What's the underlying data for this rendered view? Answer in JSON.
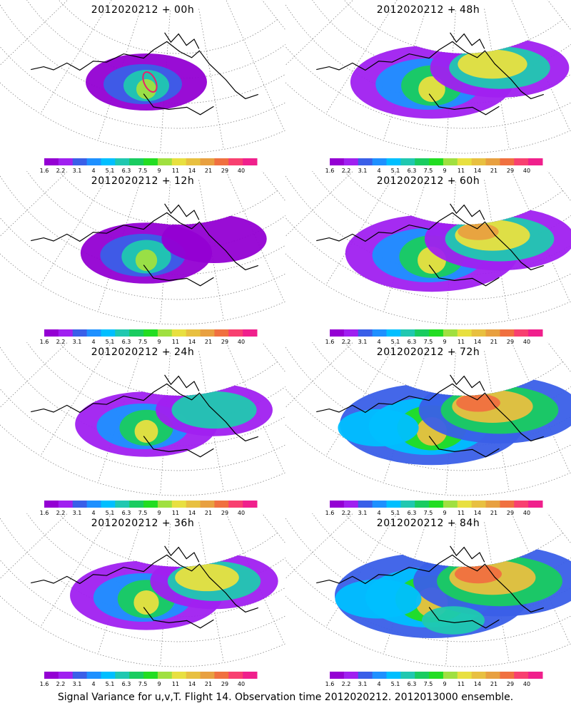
{
  "panels": [
    {
      "title": "2012020212 + 00h",
      "spread": 0.0,
      "marker": true
    },
    {
      "title": "2012020212 + 48h",
      "spread": 0.57,
      "marker": false
    },
    {
      "title": "2012020212 + 12h",
      "spread": 0.14,
      "marker": false
    },
    {
      "title": "2012020212 + 60h",
      "spread": 0.71,
      "marker": false
    },
    {
      "title": "2012020212 + 24h",
      "spread": 0.29,
      "marker": false
    },
    {
      "title": "2012020212 + 72h",
      "spread": 0.86,
      "marker": false
    },
    {
      "title": "2012020212 + 36h",
      "spread": 0.43,
      "marker": false
    },
    {
      "title": "2012020212 + 84h",
      "spread": 1.0,
      "marker": false
    }
  ],
  "colorbar": {
    "colors": [
      "#9400d3",
      "#a020f0",
      "#3a5fe8",
      "#1e90ff",
      "#00bfff",
      "#20c8b0",
      "#19cc60",
      "#22dd22",
      "#a0e040",
      "#e8e040",
      "#e8c040",
      "#e8a040",
      "#f07040",
      "#f84070",
      "#f0208c"
    ],
    "labels": [
      "1.6",
      "2.2",
      "3.1",
      "4",
      "5.1",
      "6.3",
      "7.5",
      "9",
      "11",
      "14",
      "21",
      "29",
      "40"
    ]
  },
  "footer": "Signal Variance for u,v,T. Flight 14. Observation time 2012020212. 2012013000 ensemble."
}
